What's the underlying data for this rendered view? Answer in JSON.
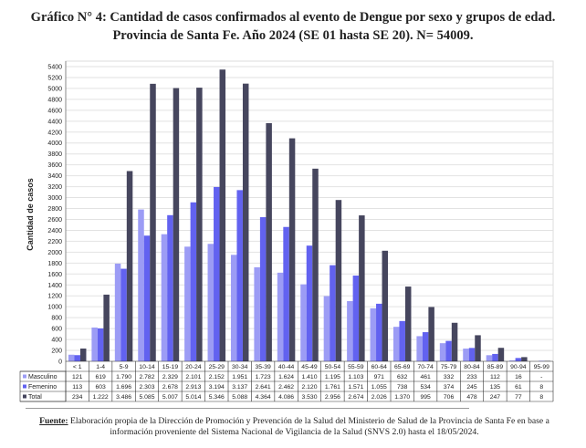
{
  "title_line1": "Gráfico N° 4: Cantidad de casos confirmados al evento de Dengue por sexo y grupos de edad.",
  "title_line2": "Provincia de Santa Fe. Año 2024 (SE 01 hasta SE 20). N= 54009.",
  "footnote_label": "Fuente:",
  "footnote_text": " Elaboración propia de la Dirección de Promoción y Prevención de la Salud del Ministerio de Salud de la Provincia de Santa Fe en base a información proveniente del Sistema Nacional de Vigilancia de la Salud (SNVS 2.0) hasta el 18/05/2024.",
  "chart_data": {
    "type": "bar",
    "ylabel": "Cantidad de casos",
    "ylim": [
      0,
      5400
    ],
    "ytick_step": 200,
    "grid": true,
    "legend_placement": "data-table",
    "categories": [
      "< 1",
      "1-4",
      "5-9",
      "10-14",
      "15-19",
      "20-24",
      "25-29",
      "30-34",
      "35-39",
      "40-44",
      "45-49",
      "50-54",
      "55-59",
      "60-64",
      "65-69",
      "70-74",
      "75-79",
      "80-84",
      "85-89",
      "90-94",
      "95-99"
    ],
    "series": [
      {
        "name": "Masculino",
        "color": "#9c9cf5",
        "values": [
          121,
          619,
          1790,
          2782,
          2329,
          2101,
          2152,
          1951,
          1723,
          1624,
          1410,
          1195,
          1103,
          971,
          632,
          461,
          332,
          233,
          112,
          16,
          null
        ],
        "labels": [
          "121",
          "619",
          "1.790",
          "2.782",
          "2.329",
          "2.101",
          "2.152",
          "1.951",
          "1.723",
          "1.624",
          "1.410",
          "1.195",
          "1.103",
          "971",
          "632",
          "461",
          "332",
          "233",
          "112",
          "16",
          "-"
        ]
      },
      {
        "name": "Femenino",
        "color": "#6262f0",
        "values": [
          113,
          603,
          1696,
          2303,
          2678,
          2913,
          3194,
          3137,
          2641,
          2462,
          2120,
          1761,
          1571,
          1055,
          738,
          534,
          374,
          245,
          135,
          61,
          8
        ],
        "labels": [
          "113",
          "603",
          "1.696",
          "2.303",
          "2.678",
          "2.913",
          "3.194",
          "3.137",
          "2.641",
          "2.462",
          "2.120",
          "1.761",
          "1.571",
          "1.055",
          "738",
          "534",
          "374",
          "245",
          "135",
          "61",
          "8"
        ]
      },
      {
        "name": "Total",
        "color": "#46465e",
        "values": [
          234,
          1222,
          3486,
          5085,
          5007,
          5014,
          5346,
          5088,
          4364,
          4086,
          3530,
          2956,
          2674,
          2026,
          1370,
          995,
          706,
          478,
          247,
          77,
          8
        ],
        "labels": [
          "234",
          "1.222",
          "3.486",
          "5.085",
          "5.007",
          "5.014",
          "5.346",
          "5.088",
          "4.364",
          "4.086",
          "3.530",
          "2.956",
          "2.674",
          "2.026",
          "1.370",
          "995",
          "706",
          "478",
          "247",
          "77",
          "8"
        ]
      }
    ]
  }
}
